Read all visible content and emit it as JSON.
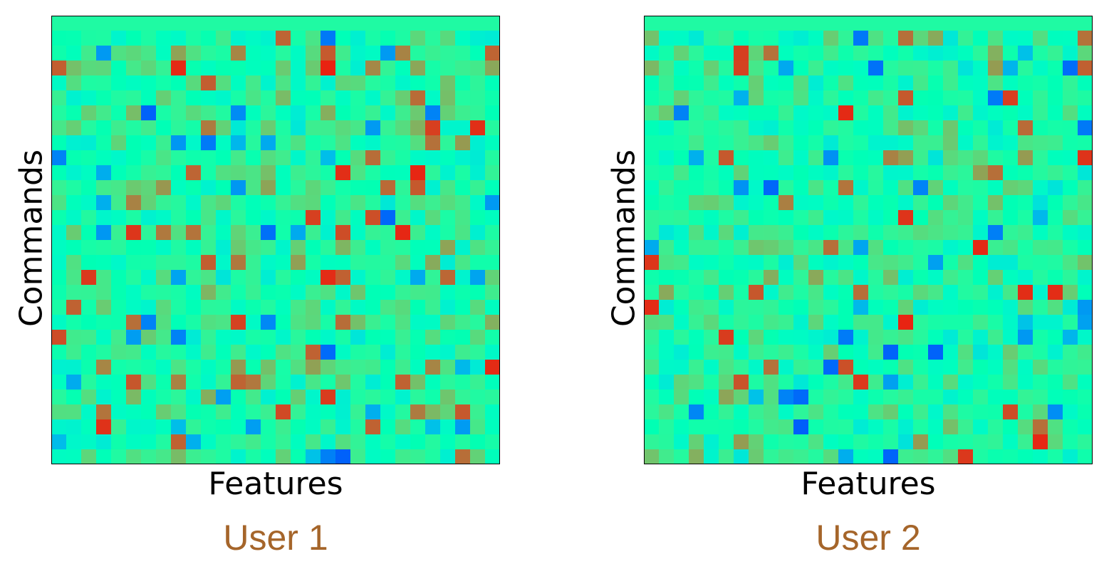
{
  "chart_data": [
    {
      "type": "heatmap",
      "caption": "User 1",
      "xlabel": "Features",
      "ylabel": "Commands",
      "colormap": "rainbow",
      "grid": false,
      "rows": 30,
      "cols": 30,
      "seed": 17
    },
    {
      "type": "heatmap",
      "caption": "User 2",
      "xlabel": "Features",
      "ylabel": "Commands",
      "colormap": "rainbow",
      "grid": false,
      "rows": 30,
      "cols": 30,
      "seed": 91
    }
  ],
  "colors": {
    "caption": "#a5652a",
    "axis": "#000000"
  }
}
